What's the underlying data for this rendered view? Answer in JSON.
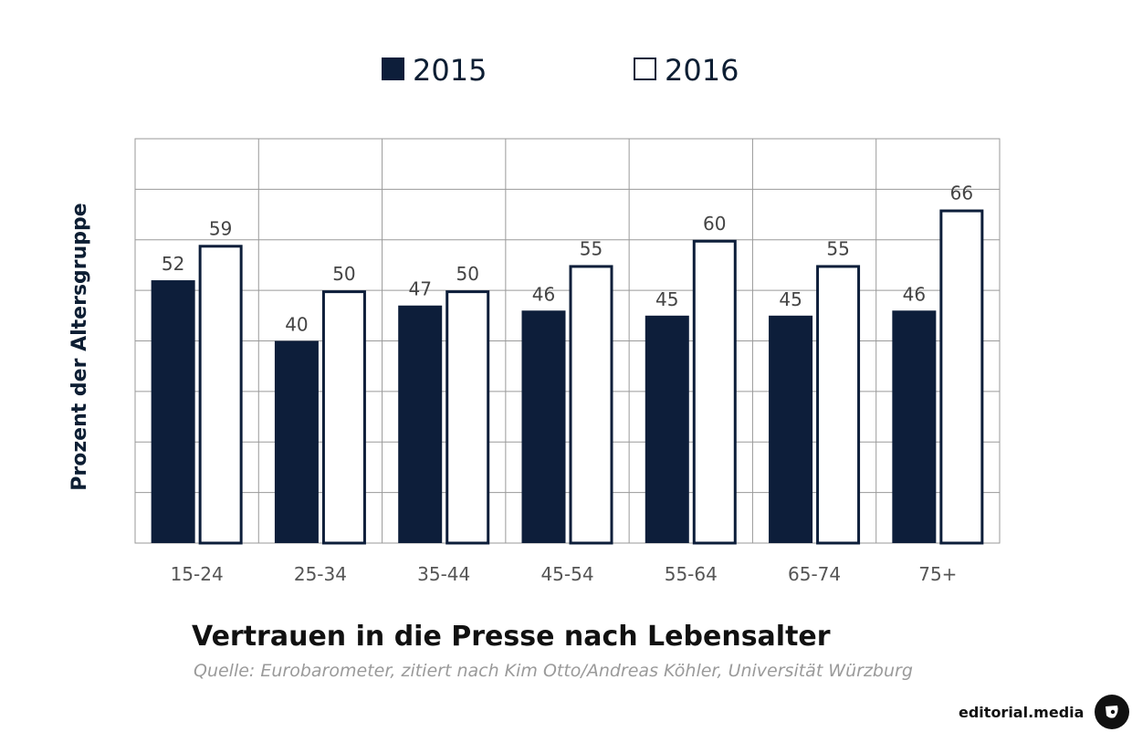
{
  "chart_data": {
    "type": "bar",
    "title": "Vertrauen in die Presse nach Lebensalter",
    "source": "Quelle: Eurobarometer, zitiert nach Kim Otto/Andreas Köhler, Universität Würzburg",
    "xlabel": "",
    "ylabel": "Prozent der Altersgruppe",
    "categories": [
      "15-24",
      "25-34",
      "35-44",
      "45-54",
      "55-64",
      "65-74",
      "75+"
    ],
    "series": [
      {
        "name": "2015",
        "values": [
          52,
          40,
          47,
          46,
          45,
          45,
          46
        ],
        "color": "#0d1e3a",
        "style": "filled"
      },
      {
        "name": "2016",
        "values": [
          59,
          50,
          50,
          55,
          60,
          55,
          66
        ],
        "color": "#ffffff",
        "stroke": "#0d1e3a",
        "style": "outline"
      }
    ],
    "ylim": [
      0,
      80
    ],
    "ygrid_step": 10,
    "grid": true,
    "legend_position": "top-center",
    "show_y_ticks": false
  },
  "branding": {
    "name": "editorial.media",
    "logo_icon": "editorial-media-logo-icon"
  }
}
